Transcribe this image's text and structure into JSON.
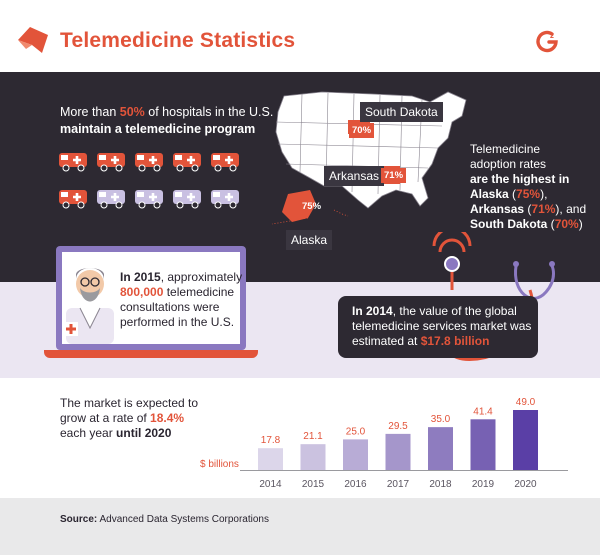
{
  "header": {
    "title": "Telemedicine Statistics",
    "logo_icon": "orange-flag-logo-icon",
    "brand_icon": "g2-logo-icon"
  },
  "hospitals": {
    "pre": "More than ",
    "pct": "50%",
    "mid": " of hospitals in the U.S.",
    "bold": "maintain a telemedicine program",
    "icons_total": 10,
    "icons_highlighted": 5
  },
  "map": {
    "labels": [
      {
        "state": "South Dakota",
        "pct": "70%"
      },
      {
        "state": "Arkansas",
        "pct": "71%"
      },
      {
        "state": "Alaska",
        "pct": "75%"
      }
    ]
  },
  "adoption": {
    "line1": "Telemedicine",
    "line2": "adoption rates",
    "bold": "are the highest in",
    "s1": "Alaska",
    "p1": "75%",
    "s2": "Arkansas",
    "p2": "71%",
    "and": ", and",
    "s3": "South Dakota",
    "p3": "70%"
  },
  "consultations": {
    "in": "In 2015",
    "rest1": ", approximately",
    "count": "800,000",
    "rest2": " telemedicine consultations were performed in the U.S."
  },
  "market": {
    "in": "In 2014",
    "rest": ", the value of the global telemedicine services market was estimated at ",
    "value": "$17.8",
    "unit": " billion"
  },
  "growth": {
    "line1": "The market is expected to grow at a rate of ",
    "rate": "18.4%",
    "line2": " each year ",
    "until": "until 2020"
  },
  "chart_data": {
    "type": "bar",
    "categories": [
      "2014",
      "2015",
      "2016",
      "2017",
      "2018",
      "2019",
      "2020"
    ],
    "values": [
      17.8,
      21.1,
      25.0,
      29.5,
      35.0,
      41.4,
      49.0
    ],
    "value_labels": [
      "17.8",
      "21.1",
      "25.0",
      "29.5",
      "35.0",
      "41.4",
      "49.0"
    ],
    "ylabel": "$ billions",
    "ylim": [
      0,
      49.0
    ],
    "grid": false,
    "legend": "none",
    "colors": [
      "#dcd6ea",
      "#cbc2e0",
      "#b8acd6",
      "#a596cb",
      "#8e7cbf",
      "#7761b3",
      "#5a3fa6"
    ]
  },
  "source": {
    "label": "Source:",
    "text": " Advanced Data Systems Corporations"
  },
  "colors": {
    "accent": "#e2543a",
    "dark": "#2d2932",
    "lavender": "#ebe6f2",
    "purple": "#8a78c0"
  }
}
